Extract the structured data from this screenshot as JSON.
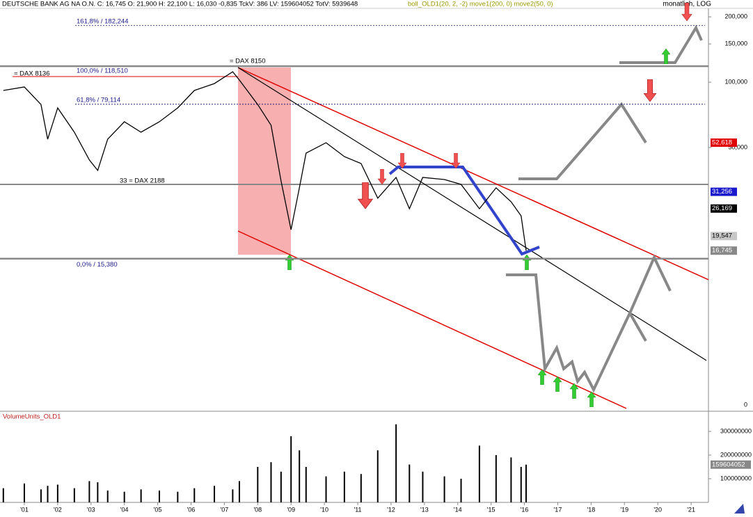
{
  "chart_data": [
    {
      "type": "line",
      "title": "DEUTSCHE BANK AG NA O.N. C: 16,745 O: 21,900 H: 22,100 L: 16,030 -0,835 TckV: 386 LV: 159604052 TotV: 5939648",
      "indicators": "boll_OLD1(20, 2, -2) move1(200, 0) move2(50, 0)",
      "scale_label": "monatlich, LOG",
      "log_scale": true,
      "color": "#000000",
      "x": [
        2000.37,
        2001.0,
        2001.5,
        2001.7,
        2002.0,
        2002.5,
        2002.95,
        2003.2,
        2003.5,
        2004.0,
        2004.5,
        2005.05,
        2005.6,
        2006.1,
        2006.7,
        2007.25,
        2007.45,
        2008.0,
        2008.4,
        2008.7,
        2009.0,
        2009.25,
        2009.45,
        2010.05,
        2010.6,
        2011.1,
        2011.6,
        2012.15,
        2012.55,
        2012.95,
        2013.6,
        2014.1,
        2014.65,
        2015.15,
        2015.6,
        2015.9,
        2016.05
      ],
      "values": [
        91600,
        95000,
        78900,
        54600,
        76100,
        58800,
        43800,
        39200,
        54600,
        65700,
        58800,
        65700,
        76100,
        91600,
        98500,
        111700,
        102200,
        78900,
        63300,
        35100,
        20900,
        32600,
        47100,
        52600,
        45400,
        42200,
        29200,
        36400,
        26100,
        36400,
        35600,
        33800,
        26100,
        32600,
        28100,
        24200,
        16745
      ],
      "xlim": [
        2000.27,
        2021.52
      ],
      "ylim": [
        3070,
        218800
      ],
      "yticks": [
        {
          "value": 200000,
          "label": "200,000"
        },
        {
          "value": 150000,
          "label": "150,000"
        },
        {
          "value": 100000,
          "label": "100,000"
        },
        {
          "value": 50000,
          "label": "50,000"
        }
      ],
      "bottom_label": "0",
      "levels": [
        {
          "value": 182244,
          "label": "161,8% / 182,244"
        },
        {
          "value": 118510,
          "label": "100,0% / 118,510"
        },
        {
          "value": 79114,
          "label": "61,8% / 79,114"
        },
        {
          "value": 15380,
          "label": "0,0% / 15,380"
        }
      ],
      "price_tags": [
        {
          "value": 52618,
          "label": "52,618",
          "color": "#e00000"
        },
        {
          "value": 31256,
          "label": "31,256",
          "color": "#1a1acc"
        },
        {
          "value": 26169,
          "label": "26,169",
          "color": "#000000"
        },
        {
          "value": 19547,
          "label": "19,547",
          "color": "#c8c8c8"
        },
        {
          "value": 16745,
          "label": "16,745",
          "color": "#888888"
        }
      ],
      "annotations": [
        "= DAX 8136",
        "= DAX 8150",
        "33 = DAX 2188"
      ]
    },
    {
      "type": "bar",
      "title": "VolumeUnits_OLD1",
      "color": "#000000",
      "x": [
        2000.37,
        2001.0,
        2001.5,
        2001.7,
        2002.0,
        2002.5,
        2002.95,
        2003.2,
        2003.5,
        2004.0,
        2004.5,
        2005.05,
        2005.6,
        2006.1,
        2006.7,
        2007.25,
        2007.45,
        2008.0,
        2008.4,
        2008.7,
        2009.0,
        2009.25,
        2009.45,
        2010.05,
        2010.6,
        2011.1,
        2011.6,
        2012.15,
        2012.55,
        2012.95,
        2013.6,
        2014.1,
        2014.65,
        2015.15,
        2015.6,
        2015.9,
        2016.05
      ],
      "values": [
        60000000,
        80000000,
        55000000,
        70000000,
        75000000,
        60000000,
        90000000,
        85000000,
        50000000,
        45000000,
        55000000,
        50000000,
        45000000,
        60000000,
        70000000,
        55000000,
        90000000,
        150000000,
        170000000,
        130000000,
        280000000,
        220000000,
        150000000,
        110000000,
        130000000,
        120000000,
        220000000,
        330000000,
        160000000,
        130000000,
        110000000,
        100000000,
        240000000,
        200000000,
        190000000,
        150000000,
        159604052
      ],
      "xlim": [
        2000.27,
        2021.52
      ],
      "ylim": [
        0,
        350000000
      ],
      "yticks": [
        100000000,
        200000000,
        300000000
      ],
      "last_tag": {
        "value": 159604052,
        "label": "159604052"
      },
      "xticks": [
        {
          "value": 2001,
          "label": "'01"
        },
        {
          "value": 2002,
          "label": "'02"
        },
        {
          "value": 2003,
          "label": "'03"
        },
        {
          "value": 2004,
          "label": "'04"
        },
        {
          "value": 2005,
          "label": "'05"
        },
        {
          "value": 2006,
          "label": "'06"
        },
        {
          "value": 2007,
          "label": "'07"
        },
        {
          "value": 2008,
          "label": "'08"
        },
        {
          "value": 2009,
          "label": "'09"
        },
        {
          "value": 2010,
          "label": "'10"
        },
        {
          "value": 2011,
          "label": "'11"
        },
        {
          "value": 2012,
          "label": "'12"
        },
        {
          "value": 2013,
          "label": "'13"
        },
        {
          "value": 2014,
          "label": "'14"
        },
        {
          "value": 2015,
          "label": "'15"
        },
        {
          "value": 2016,
          "label": "'16"
        },
        {
          "value": 2017,
          "label": "'17"
        },
        {
          "value": 2018,
          "label": "'18"
        },
        {
          "value": 2019,
          "label": "'19"
        },
        {
          "value": 2020,
          "label": "'20"
        },
        {
          "value": 2021,
          "label": "'21"
        }
      ]
    }
  ]
}
